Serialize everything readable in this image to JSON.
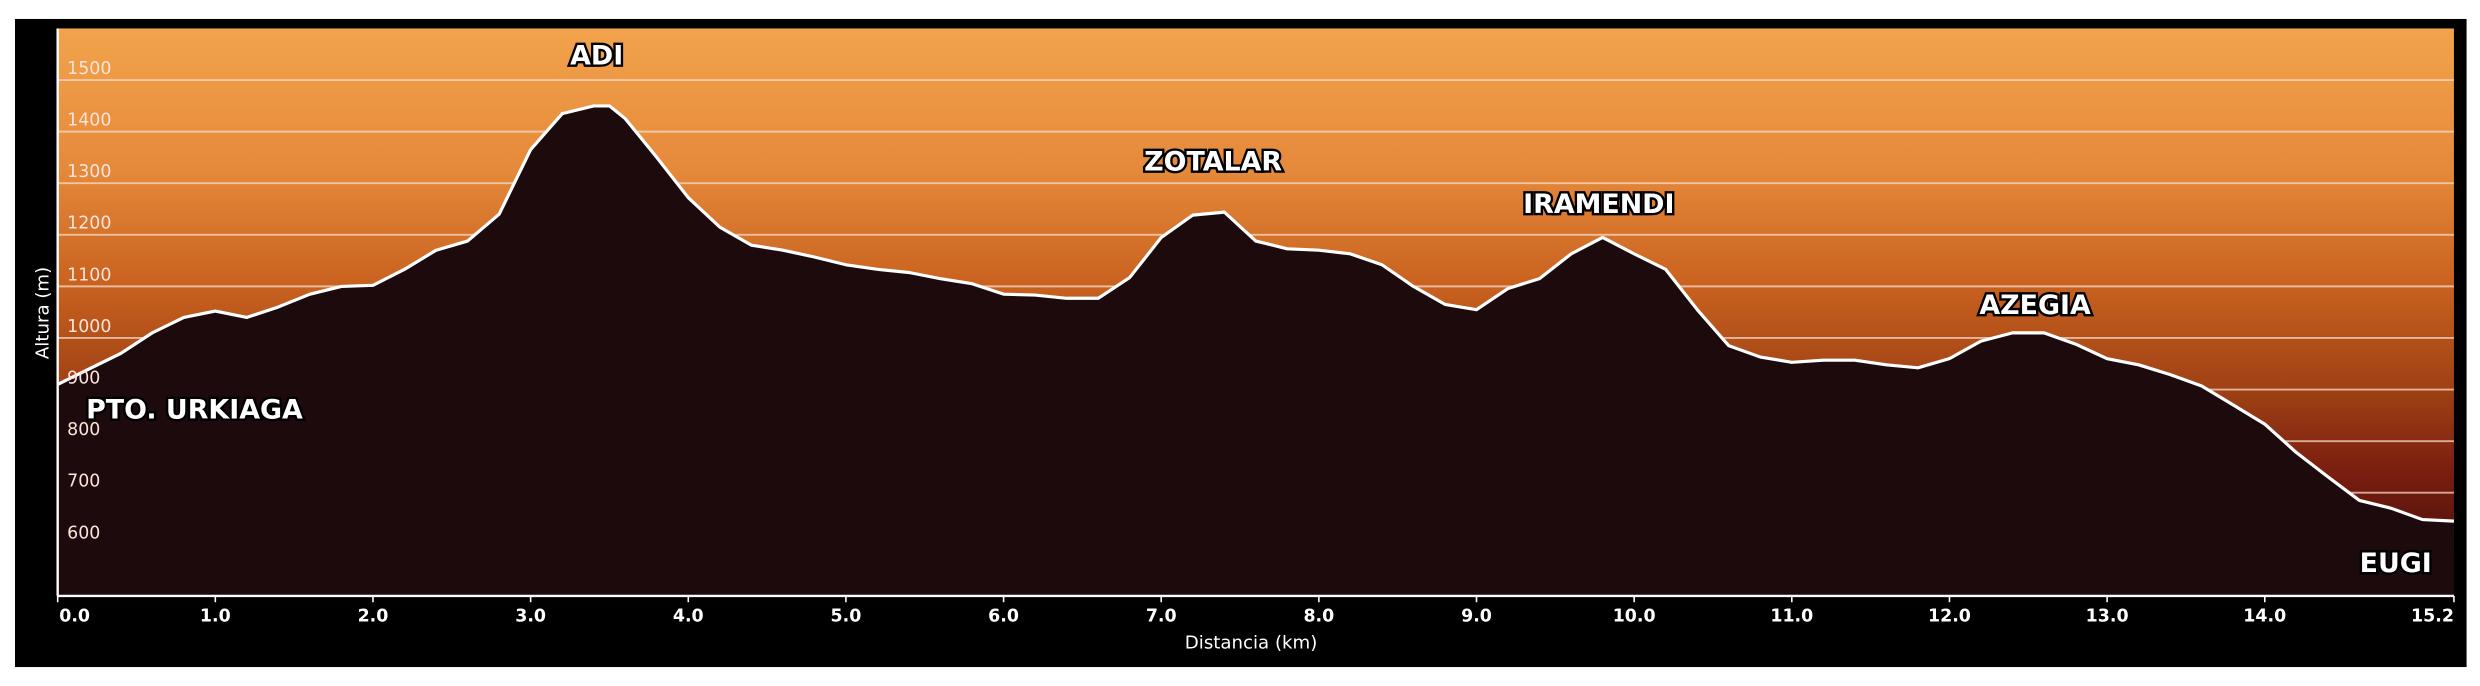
{
  "chart_data": {
    "type": "area",
    "ylabel": "Altura (m)",
    "xlabel": "Distancia  (km)",
    "x": [
      0,
      0.2,
      0.4,
      0.6,
      0.8,
      1.0,
      1.2,
      1.4,
      1.6,
      1.8,
      2.0,
      2.2,
      2.4,
      2.6,
      2.8,
      3.0,
      3.2,
      3.4,
      3.5,
      3.6,
      3.8,
      4.0,
      4.2,
      4.4,
      4.6,
      4.8,
      5.0,
      5.2,
      5.4,
      5.6,
      5.8,
      6.0,
      6.2,
      6.4,
      6.6,
      6.8,
      7.0,
      7.2,
      7.4,
      7.6,
      7.8,
      8.0,
      8.2,
      8.4,
      8.6,
      8.8,
      9.0,
      9.2,
      9.4,
      9.6,
      9.8,
      10.0,
      10.2,
      10.4,
      10.6,
      10.8,
      11.0,
      11.2,
      11.4,
      11.6,
      11.8,
      12.0,
      12.2,
      12.4,
      12.6,
      12.8,
      13.0,
      13.2,
      13.4,
      13.6,
      13.8,
      14.0,
      14.2,
      14.4,
      14.6,
      14.8,
      15.0,
      15.2
    ],
    "values": [
      910,
      940,
      970,
      1010,
      1040,
      1052,
      1040,
      1060,
      1085,
      1100,
      1102,
      1133,
      1170,
      1188,
      1240,
      1365,
      1435,
      1450,
      1450,
      1425,
      1350,
      1272,
      1215,
      1180,
      1170,
      1157,
      1142,
      1133,
      1127,
      1115,
      1105,
      1085,
      1083,
      1077,
      1077,
      1117,
      1195,
      1238,
      1244,
      1188,
      1173,
      1170,
      1163,
      1142,
      1100,
      1065,
      1055,
      1096,
      1115,
      1163,
      1195,
      1163,
      1133,
      1055,
      985,
      963,
      953,
      957,
      957,
      948,
      942,
      960,
      994,
      1010,
      1010,
      988,
      960,
      948,
      929,
      907,
      870,
      833,
      778,
      731,
      685,
      670,
      648,
      645
    ],
    "color": "#ffffff",
    "fill": "#1c0a0d",
    "xlim": [
      0,
      15.2
    ],
    "xticks": [
      {
        "value": 0,
        "label": "0.0"
      },
      {
        "value": 1,
        "label": "1.0"
      },
      {
        "value": 2,
        "label": "2.0"
      },
      {
        "value": 3,
        "label": "3.0"
      },
      {
        "value": 4,
        "label": "4.0"
      },
      {
        "value": 5,
        "label": "5.0"
      },
      {
        "value": 6,
        "label": "6.0"
      },
      {
        "value": 7,
        "label": "7.0"
      },
      {
        "value": 8,
        "label": "8.0"
      },
      {
        "value": 9,
        "label": "9.0"
      },
      {
        "value": 10,
        "label": "10.0"
      },
      {
        "value": 11,
        "label": "11.0"
      },
      {
        "value": 12,
        "label": "12.0"
      },
      {
        "value": 13,
        "label": "13.0"
      },
      {
        "value": 14,
        "label": "14.0"
      },
      15.2
    ],
    "ylim": [
      500,
      1600
    ],
    "yticks": [
      600,
      700,
      800,
      900,
      1000,
      1100,
      1200,
      1300,
      1400,
      1500
    ],
    "grid": true,
    "annotations": [
      "ADI",
      "ZOTALAR",
      "IRAMENDI",
      "AZEGIA",
      "PTO. URKIAGA",
      "EUGI"
    ]
  }
}
